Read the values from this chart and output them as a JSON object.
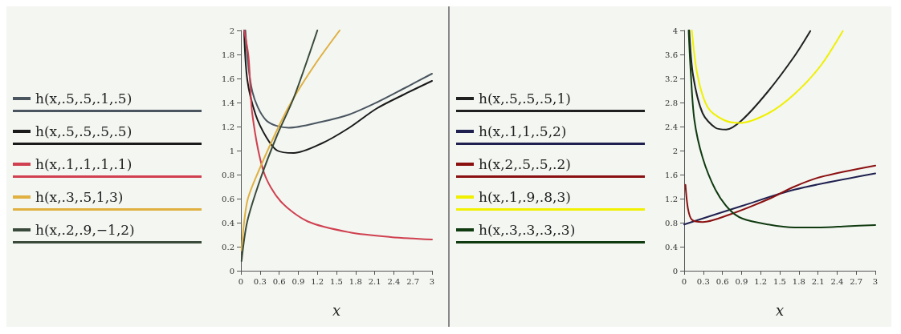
{
  "chart_data": [
    {
      "type": "line",
      "xlabel": "x",
      "legend": "left",
      "marker": "none",
      "line_style": "solid",
      "grid": false,
      "xlim": [
        0,
        3
      ],
      "xticks": [
        0,
        0.3,
        0.6,
        0.9,
        1.2,
        1.5,
        1.8,
        2.1,
        2.4,
        2.7,
        3
      ],
      "ylim": [
        0,
        2
      ],
      "yticks": [
        0,
        0.2,
        0.4,
        0.6,
        0.8,
        1,
        1.2,
        1.4,
        1.6,
        1.8,
        2
      ],
      "series": [
        {
          "name": "h(x,.5,.5,.1,.5)",
          "color": "#4a5560",
          "x": [
            0.07,
            0.18,
            0.4,
            0.75,
            1.27,
            1.7,
            2.13,
            2.57,
            3
          ],
          "values": [
            2,
            1.49,
            1.25,
            1.19,
            1.24,
            1.3,
            1.4,
            1.52,
            1.64
          ]
        },
        {
          "name": "h(x,.5,.5,.5,.5)",
          "color": "#1a1a1a",
          "x": [
            0.05,
            0.1,
            0.23,
            0.4,
            0.57,
            0.83,
            1.27,
            1.7,
            2.13,
            2.57,
            3
          ],
          "values": [
            2,
            1.59,
            1.3,
            1.11,
            1,
            0.98,
            1.06,
            1.19,
            1.35,
            1.47,
            1.58
          ]
        },
        {
          "name": "h(x,.1,.1,.1,.1)",
          "color": "#d04050",
          "x": [
            0.05,
            0.12,
            0.18,
            0.36,
            0.62,
            1.05,
            1.7,
            2.35,
            3
          ],
          "values": [
            2,
            1.78,
            1.3,
            0.82,
            0.58,
            0.41,
            0.32,
            0.28,
            0.26
          ]
        },
        {
          "name": "h(x,.3,.5,1,3)",
          "color": "#e0b040",
          "x": [
            0.01,
            0.1,
            0.27,
            0.62,
            0.83,
            1.18,
            1.55
          ],
          "values": [
            0.17,
            0.58,
            0.82,
            1.23,
            1.44,
            1.73,
            2
          ]
        },
        {
          "name": "h(x,.2,.9,−1,2)",
          "color": "#3a4a3a",
          "x": [
            0.01,
            0.1,
            0.31,
            0.57,
            0.83,
            1.2
          ],
          "values": [
            0.08,
            0.41,
            0.77,
            1.13,
            1.44,
            2
          ]
        }
      ]
    },
    {
      "type": "line",
      "xlabel": "x",
      "legend": "left",
      "marker": "none",
      "line_style": "solid",
      "grid": false,
      "xlim": [
        0,
        3
      ],
      "xticks": [
        0,
        0.3,
        0.6,
        0.9,
        1.2,
        1.5,
        1.8,
        2.1,
        2.4,
        2.7,
        3
      ],
      "ylim": [
        0,
        4
      ],
      "yticks": [
        0,
        0.4,
        0.8,
        1.2,
        1.6,
        2,
        2.4,
        2.8,
        3.2,
        3.6,
        4
      ],
      "series": [
        {
          "name": "h(x,.5,.5,.5,1)",
          "color": "#202020",
          "x": [
            0.08,
            0.14,
            0.29,
            0.49,
            0.66,
            0.91,
            1.32,
            1.73,
            1.98
          ],
          "values": [
            4,
            3.25,
            2.62,
            2.38,
            2.35,
            2.51,
            2.99,
            3.57,
            3.99
          ]
        },
        {
          "name": "h(x,.1,1,.5,2)",
          "color": "#202050",
          "x": [
            0,
            0.91,
            1.73,
            3
          ],
          "values": [
            0.77,
            1.08,
            1.35,
            1.62
          ]
        },
        {
          "name": "h(x,2,.5,.5,.2)",
          "color": "#8b1010",
          "x": [
            0.02,
            0.06,
            0.12,
            0.29,
            0.7,
            1.32,
            1.73,
            2.14,
            3
          ],
          "values": [
            1.43,
            1.03,
            0.85,
            0.81,
            0.93,
            1.19,
            1.4,
            1.56,
            1.75
          ]
        },
        {
          "name": "h(x,.1,.9,.8,3)",
          "color": "#f0f000",
          "x": [
            0.12,
            0.21,
            0.37,
            0.62,
            0.87,
            1.32,
            1.73,
            2.14,
            2.49
          ],
          "values": [
            4,
            3.25,
            2.72,
            2.51,
            2.46,
            2.62,
            2.94,
            3.41,
            3.99
          ]
        },
        {
          "name": "h(x,.3,.3,.3,.3)",
          "color": "#103a10",
          "x": [
            0.07,
            0.1,
            0.16,
            0.29,
            0.49,
            0.7,
            0.91,
            1.32,
            1.73,
            2.14,
            2.55,
            3
          ],
          "values": [
            4,
            3.36,
            2.51,
            1.88,
            1.35,
            1.03,
            0.87,
            0.77,
            0.72,
            0.72,
            0.74,
            0.76
          ]
        }
      ]
    }
  ]
}
